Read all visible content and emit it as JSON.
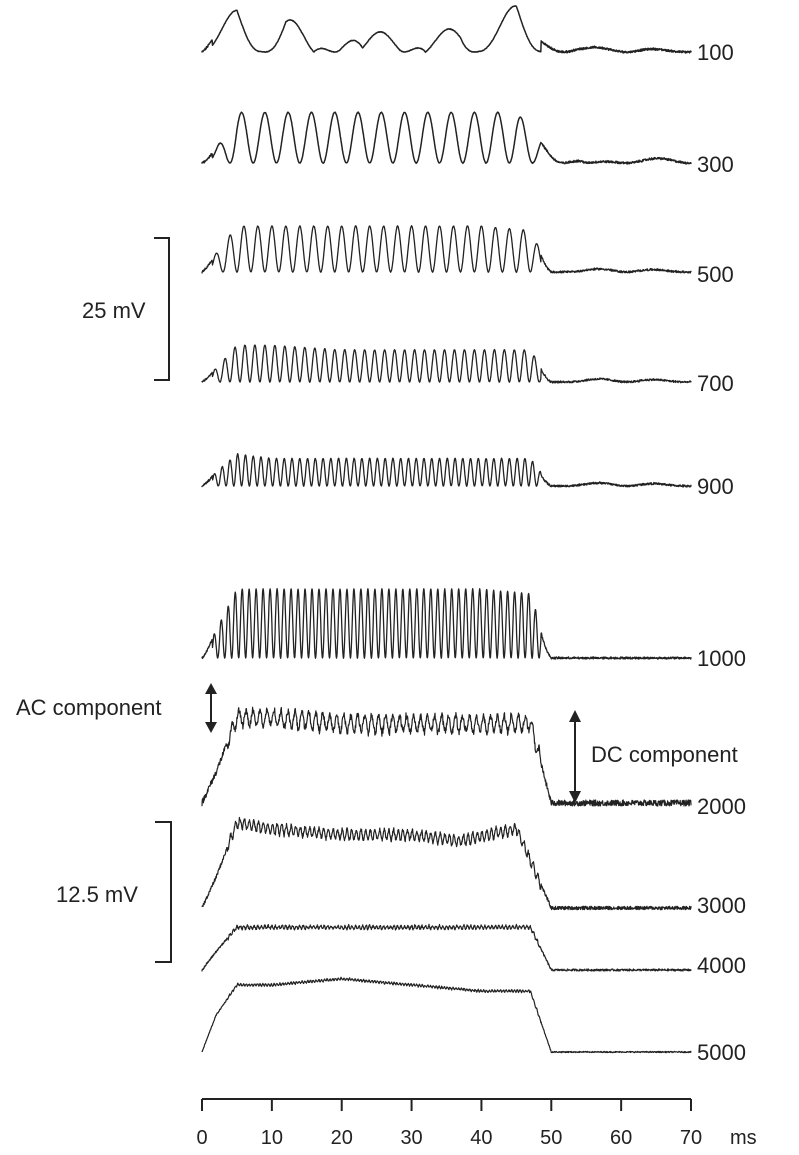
{
  "chart_data": {
    "type": "line",
    "title": "",
    "xlabel": "",
    "x_unit": "ms",
    "xlim": [
      0,
      70
    ],
    "x_ticks": [
      0,
      10,
      20,
      30,
      40,
      50,
      60,
      70
    ],
    "stimulus_window_ms": [
      1.5,
      48.5
    ],
    "series": [
      {
        "name": "100",
        "frequency_hz": 100,
        "sample_times_ms": [
          0,
          3,
          5,
          8,
          12,
          16,
          20,
          23,
          28,
          32,
          37,
          40,
          45,
          48,
          55,
          62,
          70
        ],
        "rel_values": [
          0,
          6,
          10,
          2,
          10,
          0,
          9,
          1,
          10,
          0,
          9,
          2,
          11,
          3,
          1,
          1,
          0
        ]
      },
      {
        "name": "300",
        "frequency_hz": 300,
        "sample_times_ms": [
          0,
          2,
          5,
          10,
          15,
          20,
          25,
          30,
          35,
          40,
          45,
          48,
          55,
          62,
          70
        ],
        "rel_values": [
          0,
          3,
          11,
          11,
          11,
          11,
          11,
          11,
          11,
          11,
          11,
          6,
          0,
          1,
          1
        ]
      },
      {
        "name": "500",
        "frequency_hz": 500,
        "sample_times_ms": [
          0,
          2,
          5,
          10,
          20,
          30,
          40,
          47,
          50,
          60,
          70
        ],
        "rel_values": [
          0,
          4,
          10,
          10,
          10,
          10,
          10,
          9,
          0,
          1,
          0
        ]
      },
      {
        "name": "700",
        "frequency_hz": 700,
        "sample_times_ms": [
          0,
          2,
          5,
          10,
          20,
          30,
          40,
          47,
          50,
          60,
          70
        ],
        "rel_values": [
          0,
          3,
          8,
          8,
          7,
          7,
          7,
          7,
          0,
          1,
          0
        ]
      },
      {
        "name": "900",
        "frequency_hz": 900,
        "sample_times_ms": [
          0,
          2,
          5,
          10,
          20,
          30,
          40,
          47,
          50,
          60,
          70
        ],
        "rel_values": [
          0,
          3,
          7,
          6,
          6,
          6,
          6,
          6,
          0,
          1,
          0
        ]
      },
      {
        "name": "1000",
        "frequency_hz": 1000,
        "sample_times_ms": [
          0,
          2,
          5,
          10,
          20,
          30,
          40,
          47,
          50,
          60,
          70
        ],
        "rel_values": [
          0,
          6,
          15,
          15,
          15,
          15,
          15,
          14,
          0,
          0,
          0
        ]
      },
      {
        "name": "2000",
        "frequency_hz": 2000,
        "sample_times_ms": [
          0,
          2,
          5,
          10,
          20,
          30,
          40,
          47,
          50,
          60,
          70
        ],
        "rel_values": [
          0,
          5,
          14,
          14,
          13,
          13,
          13,
          13,
          0,
          0,
          0
        ]
      },
      {
        "name": "3000",
        "frequency_hz": 3000,
        "sample_times_ms": [
          0,
          2,
          5,
          10,
          20,
          30,
          37,
          45,
          50,
          60,
          70
        ],
        "rel_values": [
          0,
          5,
          14,
          13,
          12,
          12,
          11,
          13,
          0,
          0,
          0
        ]
      },
      {
        "name": "4000",
        "frequency_hz": 4000,
        "sample_times_ms": [
          0,
          2,
          5,
          10,
          20,
          30,
          40,
          47,
          50,
          60,
          70
        ],
        "rel_values": [
          0,
          3,
          7,
          7,
          7,
          7,
          7,
          7,
          0,
          0,
          0
        ]
      },
      {
        "name": "5000",
        "frequency_hz": 5000,
        "sample_times_ms": [
          0,
          2,
          5,
          10,
          20,
          30,
          40,
          47,
          50,
          60,
          70
        ],
        "rel_values": [
          0,
          6,
          11,
          11,
          12,
          11,
          10,
          10,
          0,
          0,
          0
        ]
      }
    ],
    "scale_bars": [
      {
        "label": "25 mV",
        "value_mV": 25
      },
      {
        "label": "12.5 mV",
        "value_mV": 12.5
      }
    ],
    "annotations": [
      "AC component",
      "DC component"
    ],
    "legend": "none",
    "grid": false
  }
}
